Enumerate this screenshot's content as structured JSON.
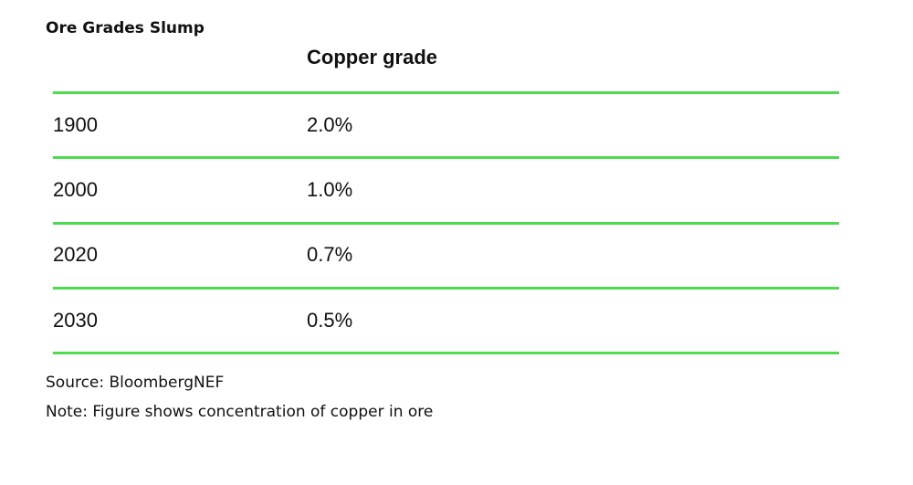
{
  "header": {
    "title": "Ore Grades Slump"
  },
  "table": {
    "columns": [
      "Copper grade"
    ],
    "rows": [
      [
        "1900",
        "2.0%"
      ],
      [
        "2000",
        "1.0%"
      ],
      [
        "2020",
        "0.7%"
      ],
      [
        "2030",
        "0.5%"
      ]
    ]
  },
  "footer": {
    "source": "Source: BloombergNEF",
    "note": "Note: Figure shows concentration of copper in ore"
  }
}
